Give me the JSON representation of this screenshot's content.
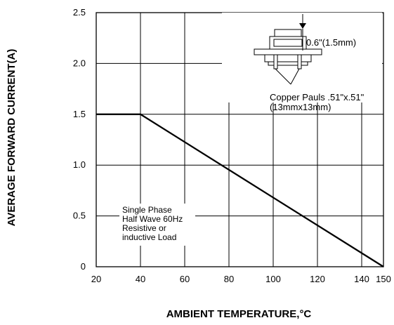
{
  "chart_data": {
    "type": "line",
    "title": "",
    "xlabel": "AMBIENT TEMPERATURE,°C",
    "ylabel": "AVERAGE FORWARD CURRENT(A)",
    "x_ticks": [
      "20",
      "40",
      "60",
      "80",
      "100",
      "120",
      "140",
      "150"
    ],
    "y_ticks": [
      "0",
      "0.5",
      "1.0",
      "1.5",
      "2.0",
      "2.5"
    ],
    "xlim": [
      20,
      150
    ],
    "ylim": [
      0,
      2.5
    ],
    "grid": true,
    "series": [
      {
        "x": [
          20,
          40,
          150
        ],
        "y": [
          1.5,
          1.5,
          0
        ]
      }
    ],
    "annotations": {
      "load_note": [
        "Single Phase",
        "Half Wave 60Hz",
        "Resistive or",
        "inductive Load"
      ],
      "dimension": "0.6\"(1.5mm)",
      "pad_note": [
        "Copper Pauls .51\"x.51\"",
        "(13mmx13mm)"
      ]
    },
    "colors": {
      "line": "#000000",
      "grid": "#000000",
      "background": "#ffffff"
    }
  }
}
